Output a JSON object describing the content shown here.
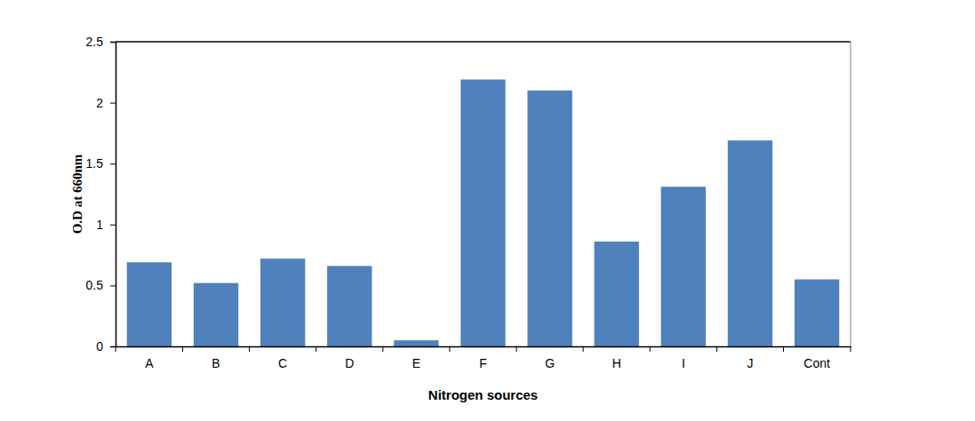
{
  "chart_data": {
    "type": "bar",
    "x_label": "Nitrogen sources",
    "y_label": "O.D at 660nm",
    "categories": [
      "A",
      "B",
      "C",
      "D",
      "E",
      "F",
      "G",
      "H",
      "I",
      "J",
      "Cont"
    ],
    "values": [
      0.69,
      0.52,
      0.72,
      0.66,
      0.05,
      2.19,
      2.1,
      0.86,
      1.31,
      1.69,
      0.55
    ],
    "color": "#4f81bd",
    "ylim": [
      0,
      2.5
    ],
    "yticks": [
      0,
      0.5,
      1,
      1.5,
      2,
      2.5
    ],
    "grid": false
  }
}
